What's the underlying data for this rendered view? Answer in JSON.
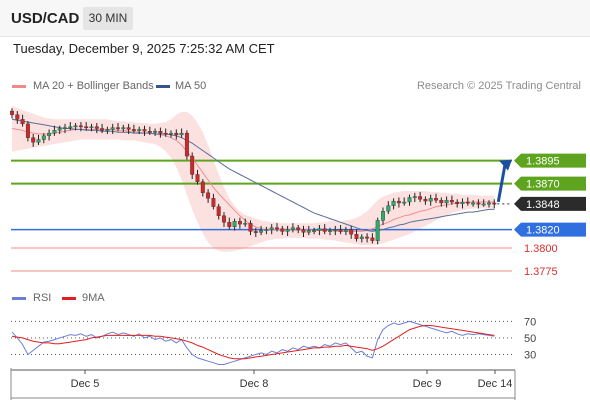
{
  "header": {
    "symbol": "USD/CAD",
    "timeframe": "30 MIN"
  },
  "timestamp": "Tuesday, December 9, 2025 7:25:32 AM CET",
  "legend": {
    "bollinger": {
      "label": "MA 20 + Bollinger Bands",
      "color": "#f08a8a"
    },
    "ma50": {
      "label": "MA 50",
      "color": "#34568b"
    }
  },
  "credit": "Research © 2025 Trading Central",
  "rsi_legend": {
    "rsi": {
      "label": "RSI",
      "color": "#6b7fd7"
    },
    "ma9": {
      "label": "9MA",
      "color": "#e02020"
    }
  },
  "chart_data": [
    {
      "type": "candlestick",
      "x_ticks": [
        "Dec 5",
        "Dec 8",
        "Dec 9",
        "Dec 14"
      ],
      "ylim": [
        1.3763,
        1.3961
      ],
      "price_levels": [
        {
          "value": 1.3895,
          "label": "1.3895",
          "kind": "resistance",
          "color": "#5ea41e"
        },
        {
          "value": 1.387,
          "label": "1.3870",
          "kind": "resistance",
          "color": "#5ea41e"
        },
        {
          "value": 1.3848,
          "label": "1.3848",
          "kind": "current",
          "color": "#2b2b2b"
        },
        {
          "value": 1.382,
          "label": "1.3820",
          "kind": "pivot",
          "color": "#2f6fe0"
        },
        {
          "value": 1.38,
          "label": "1.3800",
          "kind": "support",
          "color": "#f08a8a"
        },
        {
          "value": 1.3775,
          "label": "1.3775",
          "kind": "support",
          "color": "#f08a8a"
        }
      ],
      "close": [
        1.3945,
        1.394,
        1.3935,
        1.392,
        1.3915,
        1.3918,
        1.3922,
        1.3925,
        1.3928,
        1.393,
        1.3931,
        1.3932,
        1.3933,
        1.3932,
        1.3931,
        1.3932,
        1.393,
        1.3928,
        1.3929,
        1.3931,
        1.393,
        1.3931,
        1.3929,
        1.3928,
        1.3929,
        1.3927,
        1.3926,
        1.3927,
        1.3925,
        1.3924,
        1.3925,
        1.3923,
        1.3925,
        1.39,
        1.388,
        1.3872,
        1.386,
        1.3854,
        1.3845,
        1.3835,
        1.3828,
        1.3823,
        1.3829,
        1.3826,
        1.3827,
        1.3818,
        1.3817,
        1.3819,
        1.382,
        1.3822,
        1.3821,
        1.3818,
        1.382,
        1.3822,
        1.382,
        1.3817,
        1.3819,
        1.3819,
        1.3821,
        1.3818,
        1.3819,
        1.382,
        1.3818,
        1.382,
        1.3815,
        1.381,
        1.3812,
        1.3811,
        1.3808,
        1.383,
        1.384,
        1.3846,
        1.3851,
        1.3849,
        1.385,
        1.3855,
        1.3856,
        1.3853,
        1.3851,
        1.3854,
        1.3852,
        1.3849,
        1.3852,
        1.385,
        1.3848,
        1.385,
        1.3849,
        1.3849,
        1.3848,
        1.3848,
        1.3849,
        1.3848
      ],
      "ma20": [
        1.393,
        1.3929,
        1.3928,
        1.3926,
        1.3925,
        1.3924,
        1.3924,
        1.3924,
        1.3925,
        1.3926,
        1.3927,
        1.3928,
        1.3929,
        1.3929,
        1.3929,
        1.3929,
        1.3929,
        1.3929,
        1.3929,
        1.3929,
        1.3928,
        1.3928,
        1.3927,
        1.3927,
        1.3926,
        1.3925,
        1.3925,
        1.3924,
        1.3923,
        1.3922,
        1.392,
        1.3917,
        1.3912,
        1.3905,
        1.3898,
        1.389,
        1.3882,
        1.3874,
        1.3866,
        1.3859,
        1.3853,
        1.3847,
        1.3841,
        1.3835,
        1.383,
        1.3826,
        1.3823,
        1.3821,
        1.382,
        1.382,
        1.382,
        1.382,
        1.382,
        1.382,
        1.382,
        1.382,
        1.382,
        1.3819,
        1.3819,
        1.3819,
        1.3819,
        1.3818,
        1.3818,
        1.3818,
        1.3818,
        1.3818,
        1.3818,
        1.3819,
        1.3821,
        1.3823,
        1.3826,
        1.3828,
        1.3831,
        1.3833,
        1.3835,
        1.3836,
        1.3838,
        1.384,
        1.3841,
        1.3843,
        1.3845,
        1.3846,
        1.3847,
        1.3848,
        1.3849,
        1.3849,
        1.385,
        1.385,
        1.385,
        1.385,
        1.385,
        1.385
      ],
      "ma50": [
        1.394,
        1.3939,
        1.3938,
        1.3937,
        1.3936,
        1.3935,
        1.3934,
        1.3933,
        1.3932,
        1.3931,
        1.393,
        1.393,
        1.3929,
        1.3929,
        1.3928,
        1.3928,
        1.3928,
        1.3927,
        1.3927,
        1.3927,
        1.3926,
        1.3926,
        1.3926,
        1.3925,
        1.3925,
        1.3925,
        1.3925,
        1.3924,
        1.3924,
        1.3924,
        1.3923,
        1.3922,
        1.392,
        1.3917,
        1.3914,
        1.391,
        1.3906,
        1.3902,
        1.3898,
        1.3894,
        1.389,
        1.3886,
        1.3883,
        1.388,
        1.3877,
        1.3874,
        1.3871,
        1.3868,
        1.3865,
        1.3862,
        1.3859,
        1.3856,
        1.3853,
        1.385,
        1.3847,
        1.3844,
        1.3841,
        1.3838,
        1.3836,
        1.3834,
        1.3832,
        1.383,
        1.3828,
        1.3826,
        1.3824,
        1.3822,
        1.382,
        1.3819,
        1.3818,
        1.3819,
        1.382,
        1.3822,
        1.3823,
        1.3825,
        1.3826,
        1.3828,
        1.3829,
        1.383,
        1.3831,
        1.3832,
        1.3833,
        1.3834,
        1.3835,
        1.3836,
        1.3837,
        1.3838,
        1.3839,
        1.3839,
        1.384,
        1.3841,
        1.3842,
        1.3842
      ],
      "bb_upper": [
        1.3955,
        1.3952,
        1.395,
        1.3948,
        1.3946,
        1.3944,
        1.3942,
        1.3941,
        1.394,
        1.394,
        1.394,
        1.394,
        1.394,
        1.394,
        1.394,
        1.394,
        1.394,
        1.394,
        1.394,
        1.3939,
        1.3938,
        1.3938,
        1.3937,
        1.3937,
        1.3936,
        1.3936,
        1.3935,
        1.3935,
        1.3936,
        1.3937,
        1.394,
        1.3945,
        1.3948,
        1.3948,
        1.3944,
        1.3936,
        1.3926,
        1.3912,
        1.3896,
        1.388,
        1.3866,
        1.3854,
        1.3846,
        1.384,
        1.3836,
        1.3834,
        1.3832,
        1.383,
        1.3829,
        1.3828,
        1.3828,
        1.3827,
        1.3827,
        1.3827,
        1.3827,
        1.3827,
        1.3827,
        1.3827,
        1.3828,
        1.3828,
        1.3829,
        1.3829,
        1.3829,
        1.383,
        1.3831,
        1.3833,
        1.3836,
        1.384,
        1.3846,
        1.3852,
        1.3856,
        1.3858,
        1.386,
        1.3861,
        1.3862,
        1.3862,
        1.3862,
        1.3862,
        1.3862,
        1.3861,
        1.3861,
        1.386,
        1.386,
        1.3859,
        1.3859,
        1.3858,
        1.3858,
        1.3858,
        1.3857,
        1.3857,
        1.3857,
        1.3857
      ],
      "bb_lower": [
        1.3905,
        1.3906,
        1.3907,
        1.3908,
        1.3909,
        1.391,
        1.3911,
        1.3912,
        1.3913,
        1.3914,
        1.3915,
        1.3916,
        1.3917,
        1.3918,
        1.3918,
        1.3918,
        1.3918,
        1.3918,
        1.3918,
        1.3918,
        1.3918,
        1.3917,
        1.3917,
        1.3917,
        1.3916,
        1.3915,
        1.3914,
        1.3913,
        1.391,
        1.3905,
        1.3898,
        1.3888,
        1.3874,
        1.3858,
        1.3842,
        1.3828,
        1.3816,
        1.3806,
        1.38,
        1.3797,
        1.3796,
        1.3796,
        1.3797,
        1.3798,
        1.38,
        1.3802,
        1.3804,
        1.3806,
        1.3808,
        1.3809,
        1.381,
        1.381,
        1.3811,
        1.3811,
        1.3811,
        1.3811,
        1.381,
        1.381,
        1.381,
        1.3809,
        1.3809,
        1.3808,
        1.3807,
        1.3806,
        1.3805,
        1.3804,
        1.3803,
        1.3803,
        1.3803,
        1.3804,
        1.3805,
        1.3807,
        1.3809,
        1.3811,
        1.3813,
        1.3815,
        1.3818,
        1.3821,
        1.3824,
        1.3827,
        1.383,
        1.3833,
        1.3836,
        1.3838,
        1.384,
        1.3841,
        1.3842,
        1.3843,
        1.3843,
        1.3843,
        1.3843,
        1.3843
      ],
      "forecast": {
        "from": 1.3848,
        "to": 1.3895
      }
    },
    {
      "type": "line",
      "name": "RSI",
      "y_ticks": [
        70,
        50,
        30
      ],
      "ylim": [
        15,
        80
      ],
      "rsi": [
        57,
        50,
        42,
        30,
        35,
        40,
        45,
        46,
        48,
        50,
        52,
        54,
        53,
        55,
        52,
        54,
        50,
        52,
        55,
        57,
        54,
        56,
        54,
        52,
        55,
        50,
        52,
        48,
        50,
        46,
        48,
        44,
        48,
        38,
        30,
        26,
        24,
        22,
        20,
        18,
        18,
        20,
        22,
        24,
        26,
        28,
        30,
        32,
        30,
        34,
        32,
        36,
        34,
        38,
        36,
        40,
        38,
        40,
        38,
        42,
        40,
        44,
        42,
        44,
        38,
        32,
        34,
        28,
        26,
        48,
        60,
        65,
        68,
        66,
        68,
        70,
        68,
        66,
        64,
        62,
        60,
        58,
        56,
        58,
        55,
        53,
        55,
        54,
        55,
        54,
        53,
        52
      ],
      "ma9": [
        52,
        51,
        50,
        48,
        46,
        45,
        44,
        44,
        43,
        43,
        44,
        45,
        46,
        47,
        48,
        50,
        51,
        52,
        53,
        53,
        53,
        53,
        53,
        53,
        53,
        53,
        53,
        52,
        52,
        51,
        50,
        49,
        48,
        46,
        44,
        41,
        39,
        36,
        33,
        30,
        28,
        26,
        25,
        25,
        25,
        26,
        27,
        28,
        29,
        30,
        31,
        32,
        33,
        34,
        35,
        36,
        37,
        38,
        38,
        39,
        39,
        40,
        40,
        41,
        40,
        39,
        38,
        37,
        35,
        37,
        40,
        44,
        48,
        52,
        56,
        60,
        62,
        64,
        65,
        65,
        64,
        63,
        62,
        61,
        60,
        59,
        58,
        57,
        56,
        55,
        54,
        53
      ]
    }
  ]
}
